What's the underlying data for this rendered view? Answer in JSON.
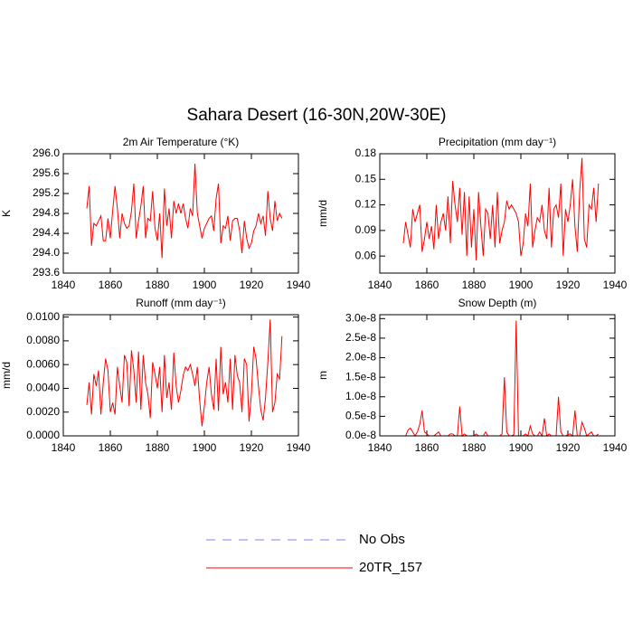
{
  "title": "Sahara Desert (16-30N,20W-30E)",
  "legend": [
    {
      "name": "No Obs",
      "color": "#8080ff",
      "dashed": true
    },
    {
      "name": "20TR_157",
      "color": "#ff0000",
      "dashed": false
    }
  ],
  "chart_data": [
    {
      "type": "line",
      "title": "2m Air Temperature (°K)",
      "ylabel": "K",
      "color": "#ff0000",
      "x": [
        1850,
        1851,
        1852,
        1853,
        1854,
        1855,
        1856,
        1857,
        1858,
        1859,
        1860,
        1861,
        1862,
        1863,
        1864,
        1865,
        1866,
        1867,
        1868,
        1869,
        1870,
        1871,
        1872,
        1873,
        1874,
        1875,
        1876,
        1877,
        1878,
        1879,
        1880,
        1881,
        1882,
        1883,
        1884,
        1885,
        1886,
        1887,
        1888,
        1889,
        1890,
        1891,
        1892,
        1893,
        1894,
        1895,
        1896,
        1897,
        1898,
        1899,
        1900,
        1901,
        1902,
        1903,
        1904,
        1905,
        1906,
        1907,
        1908,
        1909,
        1910,
        1911,
        1912,
        1913,
        1914,
        1915,
        1916,
        1917,
        1918,
        1919,
        1920,
        1921,
        1922,
        1923,
        1924,
        1925,
        1926,
        1927,
        1928,
        1929,
        1930,
        1931,
        1932,
        1933
      ],
      "values": [
        294.9,
        295.35,
        294.15,
        294.6,
        294.55,
        294.65,
        294.75,
        294.25,
        294.25,
        294.7,
        294.3,
        294.85,
        295.35,
        294.9,
        294.3,
        294.8,
        294.6,
        294.5,
        294.55,
        294.85,
        295.4,
        294.3,
        294.65,
        294.95,
        295.35,
        294.3,
        294.7,
        294.65,
        295.25,
        294.5,
        294.25,
        294.8,
        293.9,
        295.3,
        294.55,
        294.9,
        294.3,
        295.05,
        294.8,
        295.0,
        294.8,
        295.0,
        294.7,
        294.5,
        294.9,
        294.75,
        295.8,
        294.8,
        294.55,
        294.3,
        294.5,
        294.6,
        294.7,
        294.75,
        294.45,
        295.1,
        295.4,
        294.2,
        294.55,
        294.5,
        294.75,
        294.25,
        294.65,
        294.7,
        294.7,
        294.45,
        294.0,
        294.65,
        294.3,
        294.1,
        294.2,
        294.45,
        294.55,
        294.8,
        294.6,
        294.75,
        294.35,
        295.25,
        294.7,
        294.45,
        295.05,
        294.65,
        294.8,
        294.7
      ],
      "xlim": [
        1840,
        1940
      ],
      "xticks": [
        1840,
        1860,
        1880,
        1900,
        1920,
        1940
      ],
      "ylim": [
        293.6,
        296.0
      ],
      "yticks": [
        {
          "value": 293.6,
          "label": "293.6"
        },
        {
          "value": 294,
          "label": "294.0"
        },
        294.4,
        294.8,
        295.2,
        295.6,
        {
          "value": 296,
          "label": "296.0"
        }
      ]
    },
    {
      "type": "line",
      "title": "Precipitation (mm day⁻¹)",
      "ylabel": "mm/d",
      "color": "#ff0000",
      "x": [
        1850,
        1851,
        1852,
        1853,
        1854,
        1855,
        1856,
        1857,
        1858,
        1859,
        1860,
        1861,
        1862,
        1863,
        1864,
        1865,
        1866,
        1867,
        1868,
        1869,
        1870,
        1871,
        1872,
        1873,
        1874,
        1875,
        1876,
        1877,
        1878,
        1879,
        1880,
        1881,
        1882,
        1883,
        1884,
        1885,
        1886,
        1887,
        1888,
        1889,
        1890,
        1891,
        1892,
        1893,
        1894,
        1895,
        1896,
        1897,
        1898,
        1899,
        1900,
        1901,
        1902,
        1903,
        1904,
        1905,
        1906,
        1907,
        1908,
        1909,
        1910,
        1911,
        1912,
        1913,
        1914,
        1915,
        1916,
        1917,
        1918,
        1919,
        1920,
        1921,
        1922,
        1923,
        1924,
        1925,
        1926,
        1927,
        1928,
        1929,
        1930,
        1931,
        1932,
        1933
      ],
      "values": [
        0.075,
        0.1,
        0.085,
        0.07,
        0.115,
        0.1,
        0.11,
        0.12,
        0.065,
        0.08,
        0.1,
        0.08,
        0.095,
        0.068,
        0.12,
        0.08,
        0.1,
        0.11,
        0.09,
        0.13,
        0.075,
        0.148,
        0.12,
        0.1,
        0.14,
        0.085,
        0.135,
        0.06,
        0.13,
        0.07,
        0.115,
        0.055,
        0.135,
        0.095,
        0.06,
        0.115,
        0.11,
        0.08,
        0.12,
        0.07,
        0.135,
        0.075,
        0.09,
        0.1,
        0.125,
        0.115,
        0.12,
        0.115,
        0.11,
        0.1,
        0.06,
        0.075,
        0.11,
        0.095,
        0.145,
        0.07,
        0.09,
        0.105,
        0.1,
        0.12,
        0.09,
        0.08,
        0.14,
        0.07,
        0.115,
        0.12,
        0.105,
        0.145,
        0.06,
        0.115,
        0.1,
        0.12,
        0.15,
        0.095,
        0.065,
        0.135,
        0.175,
        0.08,
        0.07,
        0.12,
        0.115,
        0.14,
        0.1,
        0.145
      ],
      "xlim": [
        1840,
        1940
      ],
      "xticks": [
        1840,
        1860,
        1880,
        1900,
        1920,
        1940
      ],
      "ylim": [
        0.04,
        0.18
      ],
      "yticks": [
        0.06,
        0.09,
        0.12,
        0.15,
        0.18
      ]
    },
    {
      "type": "line",
      "title": "Runoff (mm day⁻¹)",
      "ylabel": "mm/d",
      "color": "#ff0000",
      "x": [
        1850,
        1851,
        1852,
        1853,
        1854,
        1855,
        1856,
        1857,
        1858,
        1859,
        1860,
        1861,
        1862,
        1863,
        1864,
        1865,
        1866,
        1867,
        1868,
        1869,
        1870,
        1871,
        1872,
        1873,
        1874,
        1875,
        1876,
        1877,
        1878,
        1879,
        1880,
        1881,
        1882,
        1883,
        1884,
        1885,
        1886,
        1887,
        1888,
        1889,
        1890,
        1891,
        1892,
        1893,
        1894,
        1895,
        1896,
        1897,
        1898,
        1899,
        1900,
        1901,
        1902,
        1903,
        1904,
        1905,
        1906,
        1907,
        1908,
        1909,
        1910,
        1911,
        1912,
        1913,
        1914,
        1915,
        1916,
        1917,
        1918,
        1919,
        1920,
        1921,
        1922,
        1923,
        1924,
        1925,
        1926,
        1927,
        1928,
        1929,
        1930,
        1931,
        1932,
        1933
      ],
      "values": [
        0.0026,
        0.0045,
        0.0018,
        0.0052,
        0.0042,
        0.0055,
        0.0018,
        0.0045,
        0.0065,
        0.0055,
        0.002,
        0.0028,
        0.0018,
        0.0058,
        0.0042,
        0.0028,
        0.0068,
        0.0062,
        0.0025,
        0.0072,
        0.0055,
        0.0028,
        0.0071,
        0.0022,
        0.0068,
        0.0045,
        0.0035,
        0.0015,
        0.0062,
        0.0052,
        0.004,
        0.0058,
        0.002,
        0.0068,
        0.0032,
        0.0045,
        0.0022,
        0.007,
        0.0042,
        0.0028,
        0.0038,
        0.0051,
        0.0058,
        0.0055,
        0.006,
        0.0052,
        0.0042,
        0.0058,
        0.003,
        0.0008,
        0.0025,
        0.0045,
        0.0058,
        0.0035,
        0.0022,
        0.0065,
        0.0021,
        0.0075,
        0.0035,
        0.0045,
        0.0028,
        0.0065,
        0.0022,
        0.0068,
        0.0051,
        0.0045,
        0.002,
        0.0065,
        0.006,
        0.0012,
        0.0035,
        0.0075,
        0.0065,
        0.0042,
        0.0022,
        0.0013,
        0.0032,
        0.0062,
        0.0098,
        0.002,
        0.0028,
        0.0052,
        0.0048,
        0.0084
      ],
      "xlim": [
        1840,
        1940
      ],
      "xticks": [
        1840,
        1860,
        1880,
        1900,
        1920,
        1940
      ],
      "ylim": [
        0,
        0.0102
      ],
      "yticks": [
        {
          "value": 0,
          "label": "0.0000"
        },
        {
          "value": 0.002,
          "label": "0.0020"
        },
        {
          "value": 0.004,
          "label": "0.0040"
        },
        {
          "value": 0.006,
          "label": "0.0060"
        },
        {
          "value": 0.008,
          "label": "0.0080"
        },
        {
          "value": 0.01,
          "label": "0.0100"
        }
      ]
    },
    {
      "type": "line",
      "title": "Snow Depth (m)",
      "ylabel": "m",
      "color": "#ff0000",
      "x": [
        1850,
        1851,
        1852,
        1853,
        1854,
        1855,
        1856,
        1857,
        1858,
        1859,
        1860,
        1861,
        1862,
        1863,
        1864,
        1865,
        1866,
        1867,
        1868,
        1869,
        1870,
        1871,
        1872,
        1873,
        1874,
        1875,
        1876,
        1877,
        1878,
        1879,
        1880,
        1881,
        1882,
        1883,
        1884,
        1885,
        1886,
        1887,
        1888,
        1889,
        1890,
        1891,
        1892,
        1893,
        1894,
        1895,
        1896,
        1897,
        1898,
        1899,
        1900,
        1901,
        1902,
        1903,
        1904,
        1905,
        1906,
        1907,
        1908,
        1909,
        1910,
        1911,
        1912,
        1913,
        1914,
        1915,
        1916,
        1917,
        1918,
        1919,
        1920,
        1921,
        1922,
        1923,
        1924,
        1925,
        1926,
        1927,
        1928,
        1929,
        1930,
        1931,
        1932,
        1933
      ],
      "values": [
        0,
        0,
        1.5e-09,
        2e-09,
        1e-09,
        0,
        1e-09,
        3e-09,
        6.5e-09,
        1e-09,
        5e-10,
        0,
        0,
        0,
        5e-10,
        1e-09,
        0,
        0,
        0,
        0,
        5e-10,
        5e-10,
        0,
        0,
        7.5e-09,
        0,
        5e-10,
        0,
        0,
        0,
        0,
        5e-10,
        0,
        0,
        0,
        1e-09,
        0,
        0,
        0,
        0,
        0,
        0,
        5e-10,
        1.5e-08,
        1e-09,
        0,
        0,
        3e-10,
        2.95e-08,
        0,
        0,
        0,
        5e-10,
        0,
        2.5e-09,
        5e-10,
        0,
        0,
        1e-09,
        0,
        4.5e-09,
        0,
        5e-10,
        0,
        0,
        0,
        1e-08,
        1e-09,
        0,
        0,
        3e-10,
        5e-10,
        0,
        6.5e-09,
        0,
        0,
        3.5e-09,
        2e-09,
        0,
        5e-10,
        1e-09,
        0,
        0,
        5e-10
      ],
      "xlim": [
        1840,
        1940
      ],
      "xticks": [
        1840,
        1860,
        1880,
        1900,
        1920,
        1940
      ],
      "ylim": [
        0,
        3.1e-08
      ],
      "yticks": [
        {
          "value": 0,
          "label": "0.0e-8"
        },
        {
          "value": 5e-09,
          "label": "0.5e-8"
        },
        {
          "value": 1e-08,
          "label": "1.0e-8"
        },
        {
          "value": 1.5e-08,
          "label": "1.5e-8"
        },
        {
          "value": 2e-08,
          "label": "2.0e-8"
        },
        {
          "value": 2.5e-08,
          "label": "2.5e-8"
        },
        {
          "value": 3e-08,
          "label": "3.0e-8"
        }
      ]
    }
  ]
}
